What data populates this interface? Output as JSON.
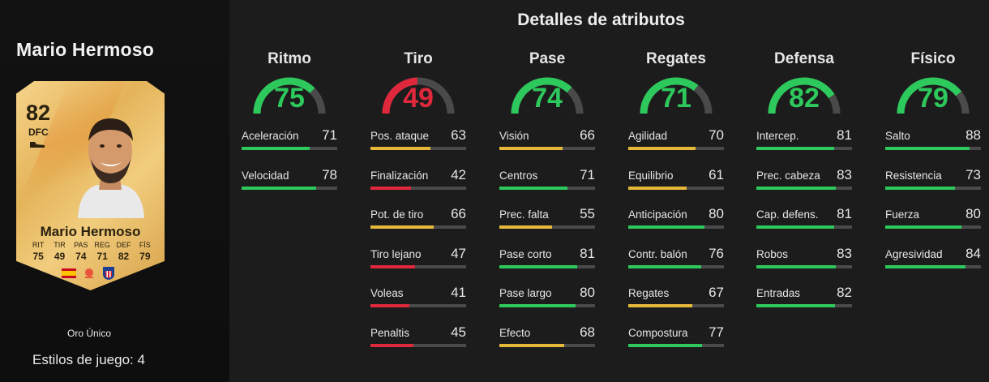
{
  "player": {
    "name": "Mario Hermoso",
    "card": {
      "rating": "82",
      "position": "DFC",
      "name": "Mario Hermoso",
      "attr_keys": [
        "RIT",
        "TIR",
        "PAS",
        "REG",
        "DEF",
        "FÍS"
      ],
      "attr_values": [
        "75",
        "49",
        "74",
        "71",
        "82",
        "79"
      ],
      "icons": [
        "boot-icon",
        "spain-flag-icon",
        "laliga-icon",
        "atletico-crest-icon"
      ]
    },
    "card_type": "Oro Único",
    "play_styles": "Estilos de juego: 4"
  },
  "title": "Detalles de atributos",
  "colors": {
    "green": "#2ec95c",
    "yellow": "#e6b83a",
    "red": "#e0283d",
    "track": "#4a4a4a"
  },
  "categories": [
    {
      "name": "Ritmo",
      "value": 75,
      "color": "#2ec95c",
      "stats": [
        {
          "label": "Aceleración",
          "value": 71,
          "color": "#2ec95c"
        },
        {
          "label": "Velocidad",
          "value": 78,
          "color": "#2ec95c"
        }
      ]
    },
    {
      "name": "Tiro",
      "value": 49,
      "color": "#e0283d",
      "stats": [
        {
          "label": "Pos. ataque",
          "value": 63,
          "color": "#e6b83a"
        },
        {
          "label": "Finalización",
          "value": 42,
          "color": "#e0283d"
        },
        {
          "label": "Pot. de tiro",
          "value": 66,
          "color": "#e6b83a"
        },
        {
          "label": "Tiro lejano",
          "value": 47,
          "color": "#e0283d"
        },
        {
          "label": "Voleas",
          "value": 41,
          "color": "#e0283d"
        },
        {
          "label": "Penaltis",
          "value": 45,
          "color": "#e0283d"
        }
      ]
    },
    {
      "name": "Pase",
      "value": 74,
      "color": "#2ec95c",
      "stats": [
        {
          "label": "Visión",
          "value": 66,
          "color": "#e6b83a"
        },
        {
          "label": "Centros",
          "value": 71,
          "color": "#2ec95c"
        },
        {
          "label": "Prec. falta",
          "value": 55,
          "color": "#e6b83a"
        },
        {
          "label": "Pase corto",
          "value": 81,
          "color": "#2ec95c"
        },
        {
          "label": "Pase largo",
          "value": 80,
          "color": "#2ec95c"
        },
        {
          "label": "Efecto",
          "value": 68,
          "color": "#e6b83a"
        }
      ]
    },
    {
      "name": "Regates",
      "value": 71,
      "color": "#2ec95c",
      "stats": [
        {
          "label": "Agilidad",
          "value": 70,
          "color": "#e6b83a"
        },
        {
          "label": "Equilibrio",
          "value": 61,
          "color": "#e6b83a"
        },
        {
          "label": "Anticipación",
          "value": 80,
          "color": "#2ec95c"
        },
        {
          "label": "Contr. balón",
          "value": 76,
          "color": "#2ec95c"
        },
        {
          "label": "Regates",
          "value": 67,
          "color": "#e6b83a"
        },
        {
          "label": "Compostura",
          "value": 77,
          "color": "#2ec95c"
        }
      ]
    },
    {
      "name": "Defensa",
      "value": 82,
      "color": "#2ec95c",
      "stats": [
        {
          "label": "Intercep.",
          "value": 81,
          "color": "#2ec95c"
        },
        {
          "label": "Prec. cabeza",
          "value": 83,
          "color": "#2ec95c"
        },
        {
          "label": "Cap. defens.",
          "value": 81,
          "color": "#2ec95c"
        },
        {
          "label": "Robos",
          "value": 83,
          "color": "#2ec95c"
        },
        {
          "label": "Entradas",
          "value": 82,
          "color": "#2ec95c"
        }
      ]
    },
    {
      "name": "Físico",
      "value": 79,
      "color": "#2ec95c",
      "stats": [
        {
          "label": "Salto",
          "value": 88,
          "color": "#2ec95c"
        },
        {
          "label": "Resistencia",
          "value": 73,
          "color": "#2ec95c"
        },
        {
          "label": "Fuerza",
          "value": 80,
          "color": "#2ec95c"
        },
        {
          "label": "Agresividad",
          "value": 84,
          "color": "#2ec95c"
        }
      ]
    }
  ]
}
